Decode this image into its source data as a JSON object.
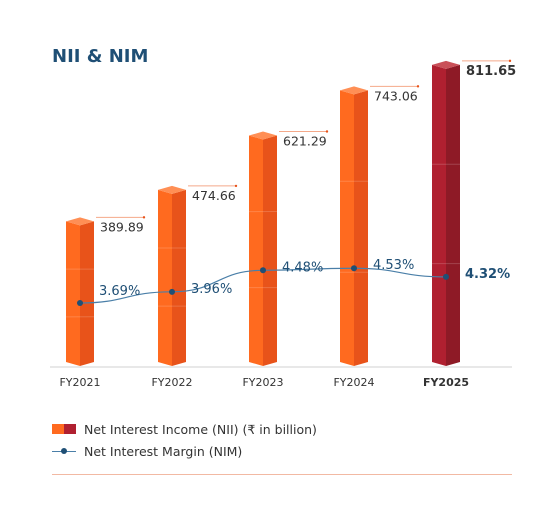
{
  "chart_data": {
    "type": "bar",
    "title": "NII & NIM",
    "categories": [
      "FY2021",
      "FY2022",
      "FY2023",
      "FY2024",
      "FY2025"
    ],
    "series": [
      {
        "name": "Net Interest Income (NII) (₹ in billion)",
        "type": "bar",
        "values": [
          389.89,
          474.66,
          621.29,
          743.06,
          811.65
        ],
        "value_labels": [
          "389.89",
          "474.66",
          "621.29",
          "743.06",
          "811.65"
        ]
      },
      {
        "name": "Net Interest Margin (NIM)",
        "type": "line",
        "values": [
          3.69,
          3.96,
          4.48,
          4.53,
          4.32
        ],
        "value_labels": [
          "3.69%",
          "3.96%",
          "4.48%",
          "4.53%",
          "4.32%"
        ]
      }
    ],
    "highlight_category": "FY2025",
    "colors": {
      "bar": "#ff6a1f",
      "bar_side": "#e8531a",
      "bar_top": "#ff8f55",
      "highlight": "#b02030",
      "highlight_side": "#8e1a26",
      "highlight_top": "#c95058",
      "line": "#4a7fa8",
      "marker": "#1f4f75",
      "title": "#1f4f75"
    },
    "grid": false,
    "legend_position": "bottom-left"
  }
}
